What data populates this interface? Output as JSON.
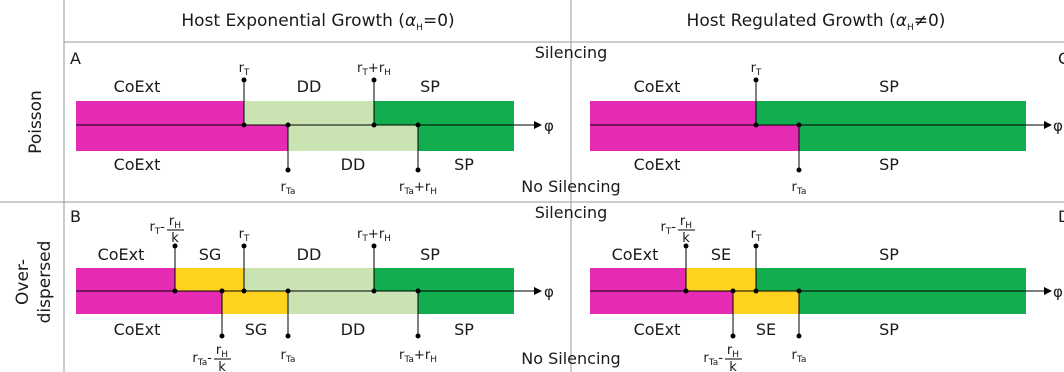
{
  "headers": {
    "left": "Host Exponential Growth (",
    "left_tail": "=0)",
    "right": "Host Regulated Growth (",
    "right_tail": "≠0)",
    "alpha": "α",
    "alpha_sub": "H"
  },
  "rows": {
    "top": "Poisson",
    "bottom_line1": "Over-",
    "bottom_line2": "dispersed"
  },
  "panel_letters": [
    "A",
    "C",
    "B",
    "D"
  ],
  "modes": {
    "silencing": "Silencing",
    "no_silencing": "No Silencing"
  },
  "axis_var": "φ",
  "colors": {
    "coext": "#e52ab4",
    "sg": "#ffd21f",
    "dd": "#c9e3b2",
    "sp": "#12ad4e",
    "grid": "#999999",
    "axis": "#000000"
  },
  "regions": {
    "coext": "CoExt",
    "sg": "SG",
    "se": "SE",
    "dd": "DD",
    "sp": "SP"
  },
  "markers": {
    "rT": {
      "base": "r",
      "sub": "T"
    },
    "rTa": {
      "base": "r",
      "sub": "Ta"
    },
    "rH": {
      "base": "r",
      "sub": "H"
    },
    "k": "k",
    "plus": "+",
    "minus": "-"
  }
}
